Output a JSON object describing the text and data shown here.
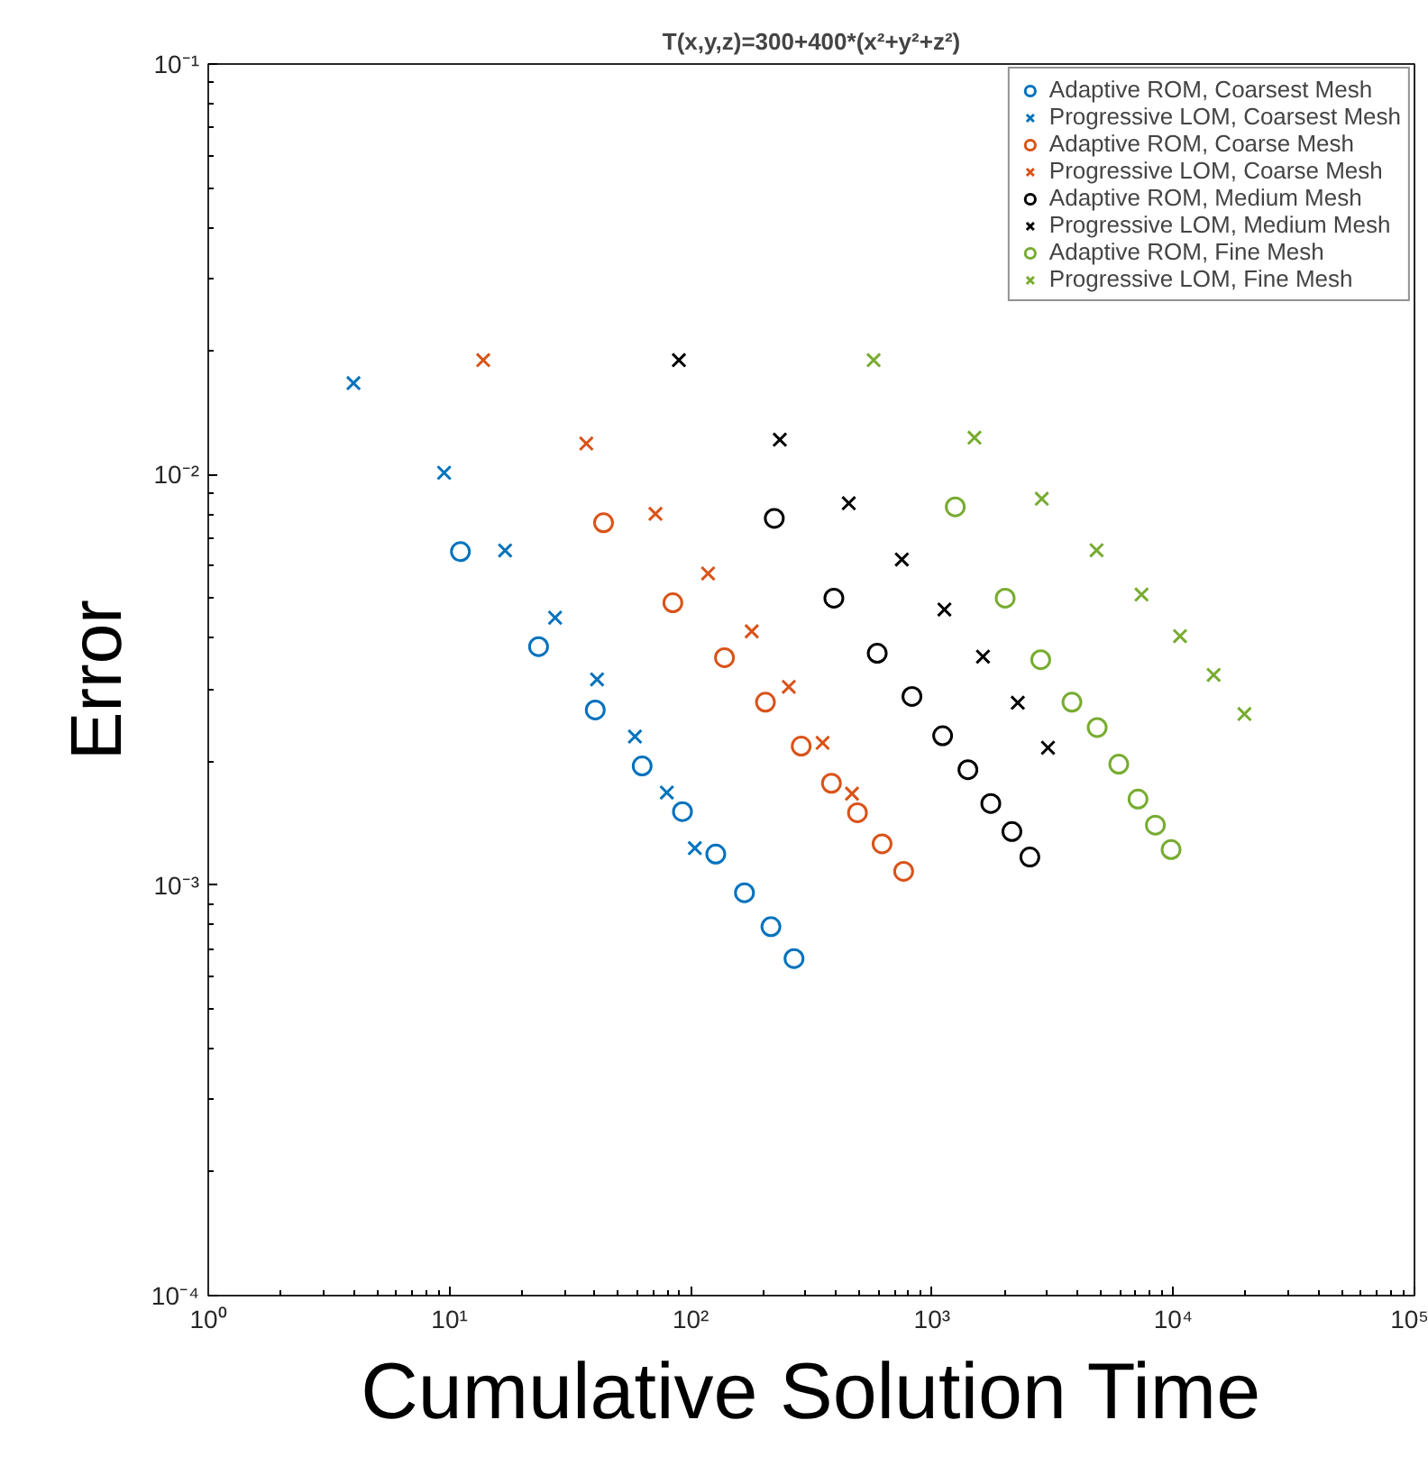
{
  "chart_data": {
    "type": "scatter",
    "title": "T(x,y,z)=300+400*(x²+y²+z²)",
    "xlabel": "Cumulative Solution Time",
    "ylabel": "Error",
    "log": "xy",
    "grid": false,
    "legend": "top right",
    "xlim": [
      1,
      100000
    ],
    "ylim": [
      0.0001,
      0.1
    ],
    "xticks": [
      {
        "value": 1,
        "label": "10⁰"
      },
      {
        "value": 10,
        "label": "10¹"
      },
      {
        "value": 100,
        "label": "10²"
      },
      {
        "value": 1000,
        "label": "10³"
      },
      {
        "value": 10000,
        "label": "10⁴"
      },
      {
        "value": 100000,
        "label": "10⁵"
      }
    ],
    "yticks": [
      {
        "value": 0.0001,
        "label": "10⁻⁴"
      },
      {
        "value": 0.001,
        "label": "10⁻³"
      },
      {
        "value": 0.01,
        "label": "10⁻²"
      },
      {
        "value": 0.1,
        "label": "10⁻¹"
      }
    ],
    "series": [
      {
        "name": "Adaptive ROM, Coarsest Mesh",
        "color": "#0072bd",
        "marker": "circle",
        "x": [
          11.1,
          23.4,
          40.2,
          62.9,
          92.4,
          127,
          167,
          215,
          268
        ],
        "values": [
          0.00649,
          0.00381,
          0.00267,
          0.00195,
          0.00151,
          0.00119,
          0.000958,
          0.000792,
          0.000662
        ]
      },
      {
        "name": "Progressive LOM, Coarsest Mesh",
        "color": "#0072bd",
        "marker": "cross",
        "x": [
          4.0,
          9.5,
          17.0,
          27.4,
          40.9,
          58.7,
          79.6,
          104
        ],
        "values": [
          0.0167,
          0.0101,
          0.00653,
          0.00448,
          0.00317,
          0.0023,
          0.00168,
          0.00123
        ]
      },
      {
        "name": "Adaptive ROM, Coarse Mesh",
        "color": "#d95319",
        "marker": "circle",
        "x": [
          43.5,
          84.3,
          138,
          204,
          287,
          383,
          491,
          621,
          763
        ],
        "values": [
          0.00763,
          0.00487,
          0.00358,
          0.00279,
          0.00218,
          0.00177,
          0.0015,
          0.00126,
          0.00108
        ]
      },
      {
        "name": "Progressive LOM, Coarse Mesh",
        "color": "#d95319",
        "marker": "cross",
        "x": [
          13.8,
          36.9,
          71.4,
          118,
          179,
          255,
          352,
          466
        ],
        "values": [
          0.019,
          0.0119,
          0.00802,
          0.00574,
          0.00415,
          0.00304,
          0.00222,
          0.00167
        ]
      },
      {
        "name": "Adaptive ROM, Medium Mesh",
        "color": "#000000",
        "marker": "circle",
        "x": [
          222,
          392,
          593,
          826,
          1107,
          1409,
          1753,
          2144,
          2545
        ],
        "values": [
          0.00782,
          0.005,
          0.00367,
          0.00288,
          0.00231,
          0.00191,
          0.00158,
          0.00135,
          0.00117
        ]
      },
      {
        "name": "Progressive LOM, Medium Mesh",
        "color": "#000000",
        "marker": "cross",
        "x": [
          89.3,
          234,
          452,
          750,
          1126,
          1627,
          2268,
          3026
        ],
        "values": [
          0.019,
          0.01216,
          0.00851,
          0.00621,
          0.00469,
          0.0036,
          0.00278,
          0.00216
        ]
      },
      {
        "name": "Adaptive ROM, Fine Mesh",
        "color": "#77ac30",
        "marker": "circle",
        "x": [
          1249,
          2011,
          2823,
          3802,
          4839,
          5946,
          7144,
          8433,
          9796
        ],
        "values": [
          0.00834,
          0.005,
          0.00354,
          0.00279,
          0.00242,
          0.00197,
          0.00162,
          0.0014,
          0.00122
        ]
      },
      {
        "name": "Progressive LOM, Fine Mesh",
        "color": "#77ac30",
        "marker": "cross",
        "x": [
          573,
          1500,
          2852,
          4811,
          7391,
          10670,
          14710,
          19730
        ],
        "values": [
          0.019,
          0.0123,
          0.00873,
          0.00654,
          0.0051,
          0.00404,
          0.00325,
          0.00261
        ]
      }
    ]
  }
}
